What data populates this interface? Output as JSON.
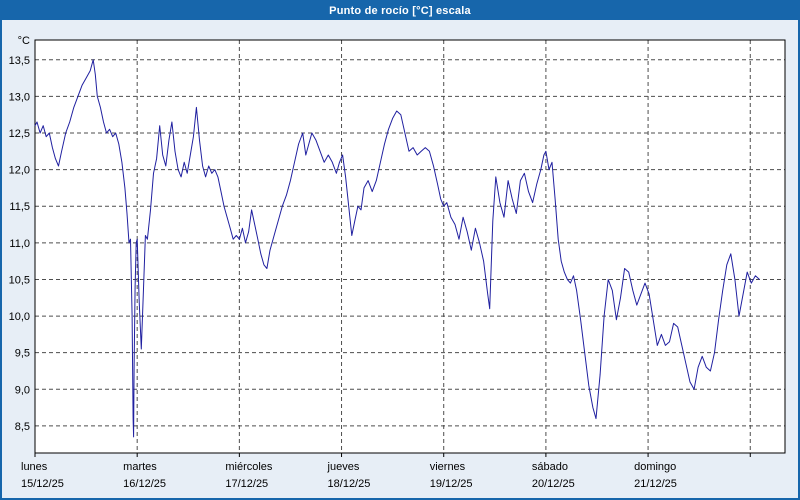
{
  "window": {
    "bg": "#e7eef6",
    "border": "#1766ab"
  },
  "title_bar": {
    "title": "Punto de rocío [°C] escala",
    "bg": "#1766ab",
    "fg": "#ffffff"
  },
  "chart_data": {
    "type": "line",
    "title": "Punto de rocío [°C] escala",
    "ylabel": "°C",
    "xlabel": "",
    "ylim": [
      8.13,
      13.77
    ],
    "x_total_days": 7.34,
    "grid": true,
    "grid_color": "#4d4d4d",
    "line_color": "#2020a0",
    "plot_bg": "#ffffff",
    "yticks": [
      {
        "v": 13.5,
        "label": "13,5"
      },
      {
        "v": 13.0,
        "label": "13,0"
      },
      {
        "v": 12.5,
        "label": "12,5"
      },
      {
        "v": 12.0,
        "label": "12,0"
      },
      {
        "v": 11.5,
        "label": "11,5"
      },
      {
        "v": 11.0,
        "label": "11,0"
      },
      {
        "v": 10.5,
        "label": "10,5"
      },
      {
        "v": 10.0,
        "label": "10,0"
      },
      {
        "v": 9.5,
        "label": "9,5"
      },
      {
        "v": 9.0,
        "label": "9,0"
      },
      {
        "v": 8.5,
        "label": "8,5"
      }
    ],
    "x_days": [
      {
        "name": "lunes",
        "date": "15/12/25"
      },
      {
        "name": "martes",
        "date": "16/12/25"
      },
      {
        "name": "miércoles",
        "date": "17/12/25"
      },
      {
        "name": "jueves",
        "date": "18/12/25"
      },
      {
        "name": "viernes",
        "date": "19/12/25"
      },
      {
        "name": "sábado",
        "date": "20/12/25"
      },
      {
        "name": "domingo",
        "date": "21/12/25"
      }
    ],
    "series": [
      {
        "name": "Punto de rocío",
        "points": [
          [
            0.0,
            12.6
          ],
          [
            0.02,
            12.65
          ],
          [
            0.05,
            12.5
          ],
          [
            0.08,
            12.6
          ],
          [
            0.11,
            12.45
          ],
          [
            0.14,
            12.5
          ],
          [
            0.17,
            12.3
          ],
          [
            0.2,
            12.15
          ],
          [
            0.23,
            12.05
          ],
          [
            0.26,
            12.25
          ],
          [
            0.3,
            12.5
          ],
          [
            0.34,
            12.65
          ],
          [
            0.38,
            12.85
          ],
          [
            0.42,
            13.0
          ],
          [
            0.46,
            13.15
          ],
          [
            0.5,
            13.25
          ],
          [
            0.54,
            13.35
          ],
          [
            0.57,
            13.5
          ],
          [
            0.59,
            13.3
          ],
          [
            0.61,
            13.0
          ],
          [
            0.64,
            12.85
          ],
          [
            0.67,
            12.65
          ],
          [
            0.7,
            12.5
          ],
          [
            0.73,
            12.55
          ],
          [
            0.76,
            12.45
          ],
          [
            0.79,
            12.5
          ],
          [
            0.82,
            12.35
          ],
          [
            0.85,
            12.1
          ],
          [
            0.88,
            11.75
          ],
          [
            0.9,
            11.4
          ],
          [
            0.92,
            11.0
          ],
          [
            0.935,
            11.05
          ],
          [
            0.95,
            10.0
          ],
          [
            0.96,
            8.6
          ],
          [
            0.965,
            8.35
          ],
          [
            0.97,
            9.3
          ],
          [
            0.98,
            10.4
          ],
          [
            0.99,
            11.0
          ],
          [
            1.0,
            11.05
          ],
          [
            1.02,
            10.2
          ],
          [
            1.04,
            9.55
          ],
          [
            1.06,
            10.3
          ],
          [
            1.08,
            11.1
          ],
          [
            1.1,
            11.05
          ],
          [
            1.13,
            11.45
          ],
          [
            1.16,
            11.95
          ],
          [
            1.19,
            12.15
          ],
          [
            1.22,
            12.6
          ],
          [
            1.25,
            12.2
          ],
          [
            1.28,
            12.05
          ],
          [
            1.31,
            12.4
          ],
          [
            1.34,
            12.65
          ],
          [
            1.37,
            12.25
          ],
          [
            1.4,
            12.0
          ],
          [
            1.43,
            11.9
          ],
          [
            1.46,
            12.1
          ],
          [
            1.49,
            11.95
          ],
          [
            1.52,
            12.2
          ],
          [
            1.55,
            12.45
          ],
          [
            1.58,
            12.85
          ],
          [
            1.61,
            12.4
          ],
          [
            1.64,
            12.05
          ],
          [
            1.67,
            11.9
          ],
          [
            1.7,
            12.05
          ],
          [
            1.73,
            11.95
          ],
          [
            1.76,
            12.0
          ],
          [
            1.79,
            11.9
          ],
          [
            1.82,
            11.7
          ],
          [
            1.85,
            11.5
          ],
          [
            1.88,
            11.35
          ],
          [
            1.91,
            11.2
          ],
          [
            1.94,
            11.05
          ],
          [
            1.97,
            11.1
          ],
          [
            2.0,
            11.05
          ],
          [
            2.03,
            11.2
          ],
          [
            2.06,
            11.0
          ],
          [
            2.09,
            11.15
          ],
          [
            2.12,
            11.45
          ],
          [
            2.15,
            11.25
          ],
          [
            2.18,
            11.05
          ],
          [
            2.21,
            10.85
          ],
          [
            2.24,
            10.7
          ],
          [
            2.27,
            10.65
          ],
          [
            2.3,
            10.9
          ],
          [
            2.34,
            11.1
          ],
          [
            2.38,
            11.3
          ],
          [
            2.42,
            11.5
          ],
          [
            2.46,
            11.65
          ],
          [
            2.5,
            11.85
          ],
          [
            2.54,
            12.1
          ],
          [
            2.58,
            12.35
          ],
          [
            2.62,
            12.5
          ],
          [
            2.65,
            12.2
          ],
          [
            2.68,
            12.35
          ],
          [
            2.71,
            12.5
          ],
          [
            2.75,
            12.4
          ],
          [
            2.79,
            12.25
          ],
          [
            2.83,
            12.1
          ],
          [
            2.87,
            12.2
          ],
          [
            2.91,
            12.1
          ],
          [
            2.95,
            11.95
          ],
          [
            2.98,
            12.1
          ],
          [
            3.01,
            12.2
          ],
          [
            3.04,
            11.9
          ],
          [
            3.07,
            11.5
          ],
          [
            3.1,
            11.1
          ],
          [
            3.13,
            11.3
          ],
          [
            3.16,
            11.5
          ],
          [
            3.19,
            11.45
          ],
          [
            3.22,
            11.75
          ],
          [
            3.26,
            11.85
          ],
          [
            3.3,
            11.7
          ],
          [
            3.34,
            11.85
          ],
          [
            3.38,
            12.1
          ],
          [
            3.42,
            12.35
          ],
          [
            3.46,
            12.55
          ],
          [
            3.5,
            12.7
          ],
          [
            3.54,
            12.8
          ],
          [
            3.58,
            12.75
          ],
          [
            3.62,
            12.5
          ],
          [
            3.66,
            12.25
          ],
          [
            3.7,
            12.3
          ],
          [
            3.74,
            12.2
          ],
          [
            3.78,
            12.25
          ],
          [
            3.82,
            12.3
          ],
          [
            3.86,
            12.25
          ],
          [
            3.9,
            12.05
          ],
          [
            3.94,
            11.8
          ],
          [
            3.97,
            11.6
          ],
          [
            4.0,
            11.5
          ],
          [
            4.03,
            11.55
          ],
          [
            4.07,
            11.35
          ],
          [
            4.11,
            11.25
          ],
          [
            4.15,
            11.05
          ],
          [
            4.19,
            11.35
          ],
          [
            4.23,
            11.15
          ],
          [
            4.27,
            10.9
          ],
          [
            4.31,
            11.2
          ],
          [
            4.35,
            11.0
          ],
          [
            4.39,
            10.75
          ],
          [
            4.43,
            10.3
          ],
          [
            4.45,
            10.1
          ],
          [
            4.48,
            11.3
          ],
          [
            4.51,
            11.9
          ],
          [
            4.55,
            11.55
          ],
          [
            4.59,
            11.35
          ],
          [
            4.63,
            11.85
          ],
          [
            4.67,
            11.6
          ],
          [
            4.71,
            11.4
          ],
          [
            4.75,
            11.85
          ],
          [
            4.79,
            11.95
          ],
          [
            4.83,
            11.7
          ],
          [
            4.87,
            11.55
          ],
          [
            4.91,
            11.8
          ],
          [
            4.95,
            12.0
          ],
          [
            4.98,
            12.2
          ],
          [
            5.0,
            12.25
          ],
          [
            5.03,
            12.0
          ],
          [
            5.06,
            12.1
          ],
          [
            5.09,
            11.6
          ],
          [
            5.12,
            11.05
          ],
          [
            5.15,
            10.75
          ],
          [
            5.18,
            10.6
          ],
          [
            5.21,
            10.5
          ],
          [
            5.24,
            10.45
          ],
          [
            5.27,
            10.55
          ],
          [
            5.3,
            10.35
          ],
          [
            5.34,
            9.95
          ],
          [
            5.38,
            9.5
          ],
          [
            5.42,
            9.05
          ],
          [
            5.46,
            8.75
          ],
          [
            5.49,
            8.6
          ],
          [
            5.53,
            9.2
          ],
          [
            5.57,
            10.0
          ],
          [
            5.61,
            10.5
          ],
          [
            5.65,
            10.35
          ],
          [
            5.69,
            9.95
          ],
          [
            5.73,
            10.25
          ],
          [
            5.77,
            10.65
          ],
          [
            5.81,
            10.6
          ],
          [
            5.85,
            10.35
          ],
          [
            5.89,
            10.15
          ],
          [
            5.93,
            10.3
          ],
          [
            5.97,
            10.45
          ],
          [
            6.01,
            10.3
          ],
          [
            6.05,
            9.95
          ],
          [
            6.09,
            9.6
          ],
          [
            6.13,
            9.75
          ],
          [
            6.17,
            9.6
          ],
          [
            6.21,
            9.65
          ],
          [
            6.25,
            9.9
          ],
          [
            6.29,
            9.85
          ],
          [
            6.33,
            9.6
          ],
          [
            6.37,
            9.35
          ],
          [
            6.41,
            9.1
          ],
          [
            6.45,
            9.0
          ],
          [
            6.49,
            9.3
          ],
          [
            6.53,
            9.45
          ],
          [
            6.57,
            9.3
          ],
          [
            6.61,
            9.25
          ],
          [
            6.65,
            9.5
          ],
          [
            6.69,
            9.95
          ],
          [
            6.73,
            10.35
          ],
          [
            6.77,
            10.7
          ],
          [
            6.81,
            10.85
          ],
          [
            6.85,
            10.5
          ],
          [
            6.89,
            10.0
          ],
          [
            6.93,
            10.3
          ],
          [
            6.97,
            10.6
          ],
          [
            7.01,
            10.45
          ],
          [
            7.05,
            10.55
          ],
          [
            7.09,
            10.5
          ]
        ]
      }
    ]
  }
}
